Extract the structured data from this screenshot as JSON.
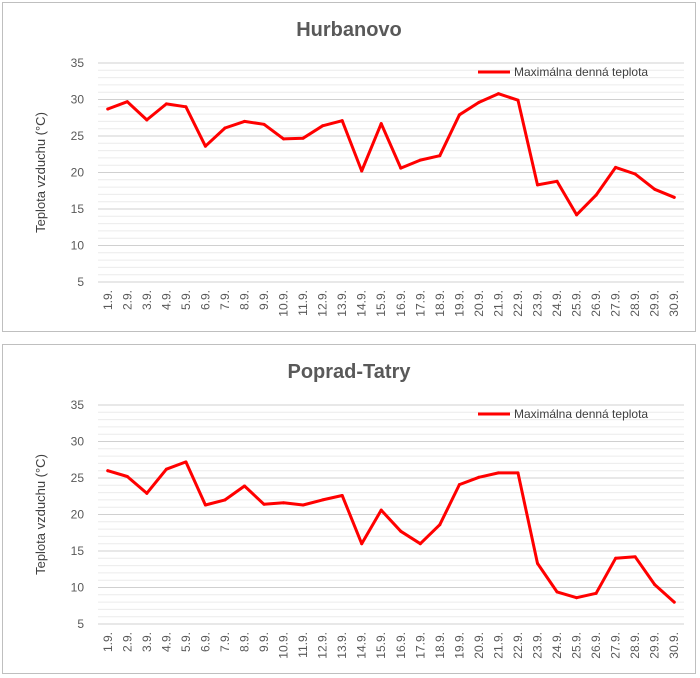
{
  "chart_data": [
    {
      "type": "line",
      "title": "Hurbanovo",
      "ylabel": "Teplota vzduchu (°C)",
      "xlabel": "",
      "ylim": [
        5,
        35
      ],
      "yticks": [
        5,
        10,
        15,
        20,
        25,
        30,
        35
      ],
      "grid": true,
      "legend_position": "top-right",
      "color": "#ff0000",
      "categories": [
        "1.9.",
        "2.9.",
        "3.9.",
        "4.9.",
        "5.9.",
        "6.9.",
        "7.9.",
        "8.9.",
        "9.9.",
        "10.9.",
        "11.9.",
        "12.9.",
        "13.9.",
        "14.9.",
        "15.9.",
        "16.9.",
        "17.9.",
        "18.9.",
        "19.9.",
        "20.9.",
        "21.9.",
        "22.9.",
        "23.9.",
        "24.9.",
        "25.9.",
        "26.9.",
        "27.9.",
        "28.9.",
        "29.9.",
        "30.9."
      ],
      "series": [
        {
          "name": "Maximálna denná teplota",
          "values": [
            28.7,
            29.7,
            27.2,
            29.4,
            29.0,
            23.6,
            26.1,
            27.0,
            26.6,
            24.6,
            24.7,
            26.4,
            27.1,
            20.2,
            26.7,
            20.6,
            21.7,
            22.3,
            27.9,
            29.6,
            30.8,
            29.9,
            18.3,
            18.8,
            14.2,
            16.9,
            20.7,
            19.8,
            17.7,
            16.6
          ]
        }
      ]
    },
    {
      "type": "line",
      "title": "Poprad-Tatry",
      "ylabel": "Teplota vzduchu (°C)",
      "xlabel": "",
      "ylim": [
        5,
        35
      ],
      "yticks": [
        5,
        10,
        15,
        20,
        25,
        30,
        35
      ],
      "grid": true,
      "legend_position": "top-right",
      "color": "#ff0000",
      "categories": [
        "1.9.",
        "2.9.",
        "3.9.",
        "4.9.",
        "5.9.",
        "6.9.",
        "7.9.",
        "8.9.",
        "9.9.",
        "10.9.",
        "11.9.",
        "12.9.",
        "13.9.",
        "14.9.",
        "15.9.",
        "16.9.",
        "17.9.",
        "18.9.",
        "19.9.",
        "20.9.",
        "21.9.",
        "22.9.",
        "23.9.",
        "24.9.",
        "25.9.",
        "26.9.",
        "27.9.",
        "28.9.",
        "29.9.",
        "30.9."
      ],
      "series": [
        {
          "name": "Maximálna denná teplota",
          "values": [
            26.0,
            25.2,
            22.9,
            26.2,
            27.2,
            21.3,
            22.0,
            23.9,
            21.4,
            21.6,
            21.3,
            22.0,
            22.6,
            16.0,
            20.6,
            17.7,
            16.0,
            18.6,
            24.1,
            25.1,
            25.7,
            25.7,
            13.3,
            9.4,
            8.6,
            9.2,
            14.0,
            14.2,
            10.4,
            8.0
          ]
        }
      ]
    }
  ]
}
